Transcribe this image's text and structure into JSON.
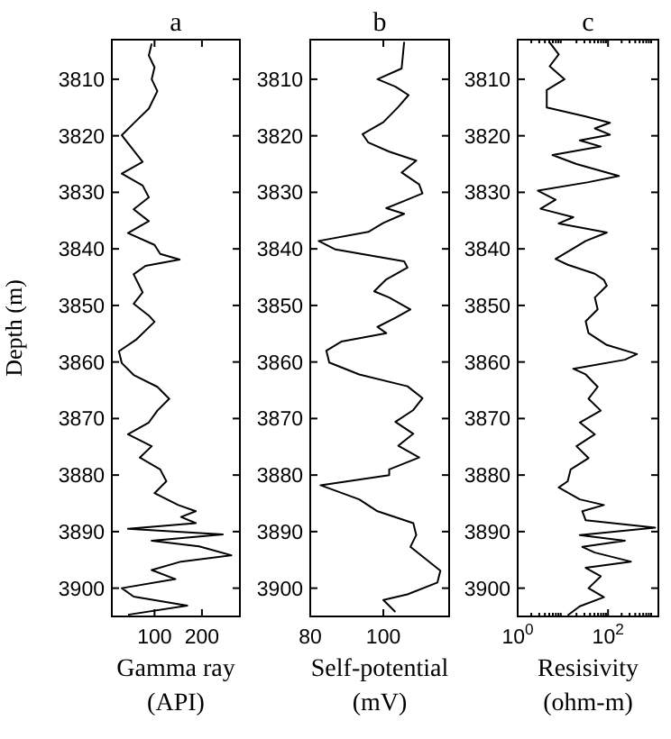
{
  "chart_data": [
    {
      "type": "line",
      "title": "a",
      "xlabel": "Gamma ray\n(API)",
      "ylabel": "Depth (m)",
      "xlim": [
        10,
        280
      ],
      "ylim": [
        3905,
        3803
      ],
      "xticks": [
        100,
        200
      ],
      "yticks": [
        3810,
        3820,
        3830,
        3840,
        3850,
        3860,
        3870,
        3880,
        3890,
        3900
      ],
      "series": [
        {
          "color": "#000000",
          "x": [
            94,
            88,
            100,
            94,
            106,
            88,
            56,
            31,
            56,
            75,
            31,
            75,
            88,
            56,
            88,
            44,
            100,
            112,
            153,
            81,
            56,
            75,
            56,
            88,
            100,
            62,
            25,
            31,
            56,
            106,
            131,
            106,
            88,
            44,
            94,
            69,
            112,
            125,
            100,
            150,
            187,
            156,
            187,
            44,
            244,
            94,
            194,
            262,
            156,
            94,
            144,
            31,
            56,
            169,
            44
          ],
          "values": [
            3803.7,
            3805.8,
            3807.9,
            3810,
            3812.1,
            3815.2,
            3817.8,
            3819.9,
            3822.6,
            3824.6,
            3826.7,
            3828.8,
            3830.9,
            3833,
            3835.1,
            3837.2,
            3839.3,
            3840.9,
            3841.9,
            3843,
            3844.5,
            3847.7,
            3849.7,
            3851.8,
            3852.9,
            3856,
            3858.1,
            3860.2,
            3862.3,
            3864.4,
            3866.5,
            3868.6,
            3870.7,
            3872.8,
            3874.9,
            3876.9,
            3879,
            3881.1,
            3883.2,
            3885.3,
            3886.4,
            3887.4,
            3888.5,
            3889.5,
            3890.5,
            3891.6,
            3892.6,
            3894.2,
            3895.3,
            3896.8,
            3898.4,
            3900,
            3901.5,
            3903.1,
            3904.7
          ]
        }
      ]
    },
    {
      "type": "line",
      "title": "b",
      "xlabel": "Self-potential\n(mV)",
      "xlim": [
        80,
        118
      ],
      "ylim": [
        3905,
        3803
      ],
      "xticks": [
        80,
        100
      ],
      "yticks": [
        3810,
        3820,
        3830,
        3840,
        3850,
        3860,
        3870,
        3880,
        3890,
        3900
      ],
      "series": [
        {
          "color": "#000000",
          "x": [
            105.7,
            105,
            98.4,
            103.3,
            106.9,
            104.1,
            100,
            94.3,
            95.9,
            101.6,
            109,
            105,
            109.8,
            110.7,
            105,
            100.8,
            105.7,
            100,
            95.9,
            82.3,
            86.9,
            105.7,
            106.6,
            100.8,
            97.5,
            101.6,
            107.4,
            103.3,
            98.4,
            100.8,
            88.5,
            84.4,
            85.2,
            93.4,
            106.6,
            110.7,
            108.2,
            103.3,
            108.2,
            104.1,
            109.8,
            101.6,
            101.6,
            82.8,
            93.4,
            98.4,
            108.2,
            109,
            107.4,
            111.5,
            115.6,
            114.8,
            106.6,
            100,
            103.3
          ],
          "values": [
            3803.4,
            3808.1,
            3810,
            3811.3,
            3812.8,
            3814.9,
            3817.6,
            3819.7,
            3821.2,
            3822.8,
            3824.4,
            3826.5,
            3828.6,
            3830.2,
            3831.7,
            3832.8,
            3833.8,
            3835.4,
            3837,
            3838.6,
            3840.1,
            3842.2,
            3843.3,
            3845.4,
            3847.5,
            3848.6,
            3850.7,
            3852.2,
            3853.8,
            3854.9,
            3856.4,
            3858,
            3860.1,
            3862.2,
            3864.3,
            3866.4,
            3868.5,
            3870.6,
            3872.7,
            3874.8,
            3876.9,
            3879,
            3880,
            3881.8,
            3884.3,
            3886.4,
            3888.5,
            3890.6,
            3892.7,
            3894.8,
            3896.9,
            3899,
            3901.1,
            3902.1,
            3904.2
          ]
        }
      ]
    },
    {
      "type": "line",
      "title": "c",
      "xlabel": "Resisivity\n(ohm-m)",
      "log": "x",
      "xlim": [
        1,
        1300
      ],
      "ylim": [
        3905,
        3803
      ],
      "xticks": [
        {
          "value": 1,
          "label": "10$^{0}$"
        },
        {
          "value": 100,
          "label": "10$^{2}$"
        }
      ],
      "yticks": [
        3810,
        3820,
        3830,
        3840,
        3850,
        3860,
        3870,
        3880,
        3890,
        3900
      ],
      "series": [
        {
          "color": "#000000",
          "x": [
            5.1,
            8.1,
            5.1,
            10.9,
            4.4,
            4.4,
            32,
            110,
            51,
            110,
            23.7,
            69,
            5.9,
            20,
            174,
            37,
            2.8,
            6.9,
            3.2,
            17,
            8.1,
            94,
            32,
            14.9,
            6.9,
            12.8,
            51,
            81,
            94,
            51,
            59,
            32,
            37,
            94,
            437,
            237,
            17,
            32,
            59,
            37,
            69,
            23.7,
            51,
            20,
            37,
            14.9,
            12.8,
            8.1,
            23.7,
            81,
            27,
            32,
            1100,
            23.7,
            237,
            27,
            51,
            320,
            32,
            69,
            37,
            81,
            23.7,
            12.8
          ],
          "values": [
            3803.5,
            3805.6,
            3807.7,
            3810,
            3811.9,
            3815,
            3816.6,
            3817.7,
            3818.7,
            3819.8,
            3820.8,
            3821.9,
            3823.4,
            3825,
            3827.1,
            3828.2,
            3829.7,
            3831.3,
            3832.9,
            3834.4,
            3835.5,
            3837.1,
            3838.6,
            3840.2,
            3841.8,
            3842.8,
            3844.4,
            3845.5,
            3846.5,
            3848.6,
            3850.7,
            3852.8,
            3854.9,
            3857,
            3858.6,
            3859.6,
            3861.2,
            3862.2,
            3864.4,
            3866.5,
            3868.6,
            3870.7,
            3872.8,
            3874.9,
            3877,
            3879,
            3881.1,
            3882.2,
            3884.3,
            3885.3,
            3886.4,
            3888,
            3889.3,
            3890.6,
            3891.6,
            3892.7,
            3893.7,
            3895.3,
            3896.4,
            3897.9,
            3900,
            3901.6,
            3903.2,
            3904.8
          ]
        }
      ]
    }
  ]
}
